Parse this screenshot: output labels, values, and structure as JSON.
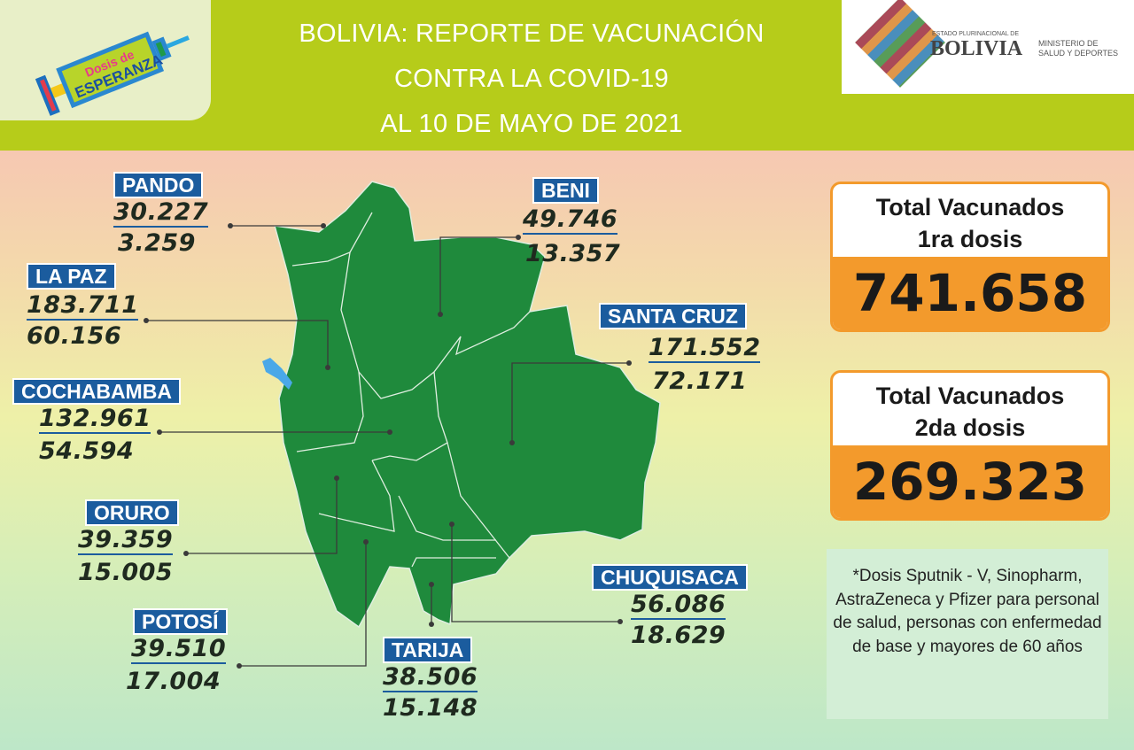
{
  "header": {
    "title_lines": [
      "BOLIVIA: REPORTE DE VACUNACIÓN",
      "CONTRA LA COVID-19",
      "AL 10 DE MAYO DE 2021"
    ],
    "logo_left": {
      "line1": "Dosis de",
      "line2": "ESPERANZA"
    },
    "logo_right": {
      "small": "ESTADO PLURINACIONAL DE",
      "big": "BOLIVIA",
      "ministry": [
        "MINISTERIO DE",
        "SALUD Y DEPORTES"
      ]
    }
  },
  "departments": [
    {
      "name": "PANDO",
      "dose1": "30.227",
      "dose2": "3.259"
    },
    {
      "name": "LA PAZ",
      "dose1": "183.711",
      "dose2": "60.156"
    },
    {
      "name": "COCHABAMBA",
      "dose1": "132.961",
      "dose2": "54.594"
    },
    {
      "name": "ORURO",
      "dose1": "39.359",
      "dose2": "15.005"
    },
    {
      "name": "POTOSÍ",
      "dose1": "39.510",
      "dose2": "17.004"
    },
    {
      "name": "TARIJA",
      "dose1": "38.506",
      "dose2": "15.148"
    },
    {
      "name": "CHUQUISACA",
      "dose1": "56.086",
      "dose2": "18.629"
    },
    {
      "name": "SANTA CRUZ",
      "dose1": "171.552",
      "dose2": "72.171"
    },
    {
      "name": "BENI",
      "dose1": "49.746",
      "dose2": "13.357"
    }
  ],
  "totals": [
    {
      "title": "Total Vacunados",
      "subtitle": "1ra dosis",
      "value": "741.658"
    },
    {
      "title": "Total Vacunados",
      "subtitle": "2da dosis",
      "value": "269.323"
    }
  ],
  "note": "*Dosis Sputnik - V, Sinopharm, AstraZeneca y Pfizer para personal de salud, personas con enfermedad de base y mayores de 60 años",
  "colors": {
    "header": "#b6cc1a",
    "map": "#1f8a3c",
    "label": "#1b5c9e",
    "total_accent": "#f39a2c",
    "note_bg": "#d3eed6"
  }
}
